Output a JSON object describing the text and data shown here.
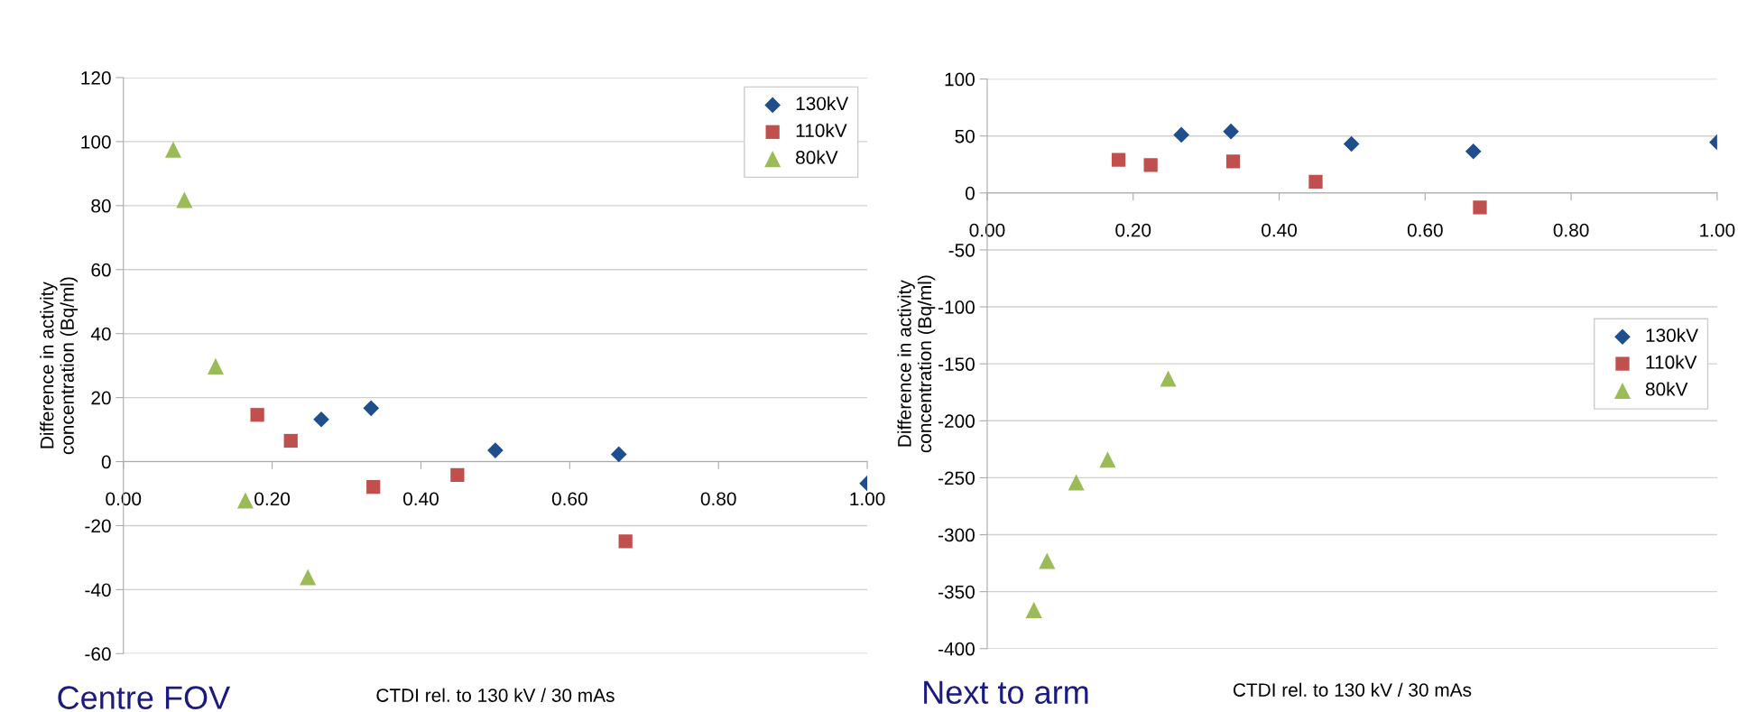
{
  "chart_data": [
    {
      "type": "scatter",
      "xlabel": "CTDI rel. to 130 kV / 30 mAs",
      "ylabel": "Difference in activity\nconcentration (Bq/ml)",
      "annotations": [
        "Centre FOV"
      ],
      "xlim": [
        0,
        1
      ],
      "xticks": [
        {
          "value": 0,
          "label": "0.00"
        },
        {
          "value": 0.2,
          "label": "0.20"
        },
        {
          "value": 0.4,
          "label": "0.40"
        },
        {
          "value": 0.6,
          "label": "0.60"
        },
        {
          "value": 0.8,
          "label": "0.80"
        },
        {
          "value": 1,
          "label": "1.00"
        }
      ],
      "ylim": [
        -60,
        120
      ],
      "yticks": [
        -60,
        -40,
        -20,
        0,
        20,
        40,
        60,
        80,
        100,
        120
      ],
      "grid": "y",
      "legend": "top right",
      "series": [
        {
          "name": "130kV",
          "color": "#1f4e8c",
          "marker": "diamond",
          "x": [
            0.266,
            0.333,
            0.5,
            0.666,
            1.0
          ],
          "values": [
            13.2,
            16.7,
            3.5,
            2.3,
            -6.8
          ]
        },
        {
          "name": "110kV",
          "color": "#c0504d",
          "marker": "square",
          "x": [
            0.18,
            0.225,
            0.336,
            0.449,
            0.675
          ],
          "values": [
            14.6,
            6.5,
            -7.9,
            -4.2,
            -24.9
          ]
        },
        {
          "name": "80kV",
          "color": "#9bbb59",
          "marker": "triangle",
          "x": [
            0.067,
            0.082,
            0.124,
            0.164,
            0.248
          ],
          "values": [
            97.5,
            81.8,
            29.8,
            -12.1,
            -36.1
          ]
        }
      ]
    },
    {
      "type": "scatter",
      "xlabel": "CTDI rel. to 130 kV / 30 mAs",
      "ylabel": "Difference in activity\nconcentration (Bq/ml)",
      "annotations": [
        "Next to arm"
      ],
      "xlim": [
        0,
        1
      ],
      "xticks": [
        {
          "value": 0,
          "label": "0.00"
        },
        {
          "value": 0.2,
          "label": "0.20"
        },
        {
          "value": 0.4,
          "label": "0.40"
        },
        {
          "value": 0.6,
          "label": "0.60"
        },
        {
          "value": 0.8,
          "label": "0.80"
        },
        {
          "value": 1,
          "label": "1.00"
        }
      ],
      "ylim": [
        -400,
        100
      ],
      "yticks": [
        -400,
        -350,
        -300,
        -250,
        -200,
        -150,
        -100,
        -50,
        0,
        50,
        100
      ],
      "grid": "y",
      "legend": "right",
      "series": [
        {
          "name": "130kV",
          "color": "#1f4e8c",
          "marker": "diamond",
          "x": [
            0.266,
            0.334,
            0.499,
            0.666,
            1.0
          ],
          "values": [
            51,
            54,
            43,
            36.5,
            44.5
          ]
        },
        {
          "name": "110kV",
          "color": "#c0504d",
          "marker": "square",
          "x": [
            0.18,
            0.224,
            0.337,
            0.45,
            0.675
          ],
          "values": [
            29,
            24.6,
            27.6,
            9.9,
            -12.8
          ]
        },
        {
          "name": "80kV",
          "color": "#9bbb59",
          "marker": "triangle",
          "x": [
            0.064,
            0.082,
            0.122,
            0.165,
            0.248
          ],
          "values": [
            -366,
            -323,
            -254,
            -234,
            -163
          ]
        }
      ]
    }
  ]
}
